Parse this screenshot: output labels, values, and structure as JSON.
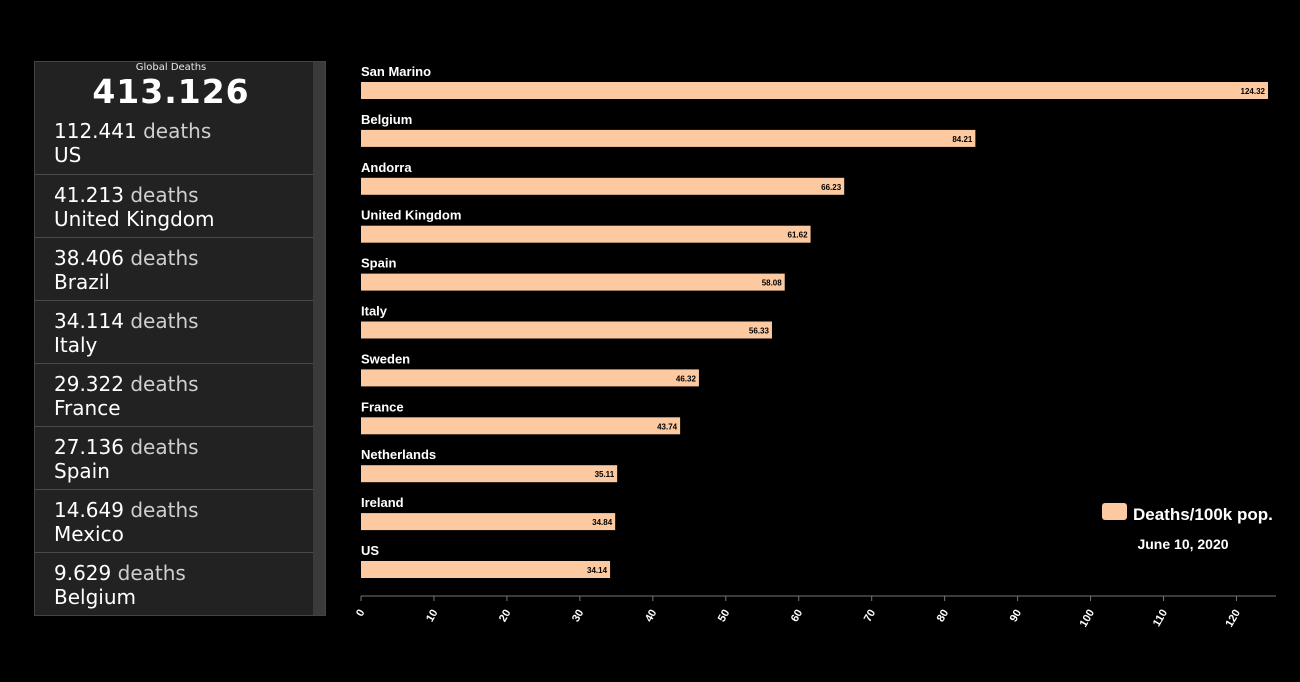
{
  "panel": {
    "global_label": "Global Deaths",
    "global_total": "413.126",
    "deaths_word": "deaths",
    "rows": [
      {
        "count": "112.441",
        "country": "US"
      },
      {
        "count": "41.213",
        "country": "United Kingdom"
      },
      {
        "count": "38.406",
        "country": "Brazil"
      },
      {
        "count": "34.114",
        "country": "Italy"
      },
      {
        "count": "29.322",
        "country": "France"
      },
      {
        "count": "27.136",
        "country": "Spain"
      },
      {
        "count": "14.649",
        "country": "Mexico"
      },
      {
        "count": "9.629",
        "country": "Belgium"
      }
    ]
  },
  "chart_data": {
    "type": "bar",
    "orientation": "horizontal",
    "categories": [
      "San Marino",
      "Belgium",
      "Andorra",
      "United Kingdom",
      "Spain",
      "Italy",
      "Sweden",
      "France",
      "Netherlands",
      "Ireland",
      "US"
    ],
    "series": [
      {
        "name": "Deaths/100k pop.",
        "values": [
          124.32,
          84.21,
          66.23,
          61.62,
          58.08,
          56.33,
          46.32,
          43.74,
          35.11,
          34.84,
          34.14
        ]
      }
    ],
    "value_labels": [
      "124.32",
      "84.21",
      "66.23",
      "61.62",
      "58.08",
      "56.33",
      "46.32",
      "43.74",
      "35.11",
      "34.84",
      "34.14"
    ],
    "xlim": [
      0,
      124.32
    ],
    "xticks": [
      0,
      10,
      20,
      30,
      40,
      50,
      60,
      70,
      80,
      90,
      100,
      110,
      120
    ],
    "legend_position": "bottom-right",
    "date_label": "June 10, 2020",
    "grid": false,
    "bar_color": "#fcc9a0",
    "title": "",
    "xlabel": "",
    "ylabel": ""
  }
}
